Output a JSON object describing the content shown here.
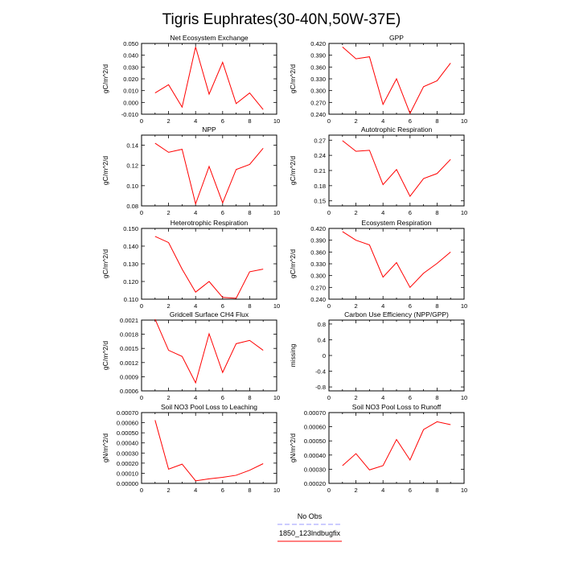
{
  "title": "Tigris Euphrates(30-40N,50W-37E)",
  "legend": {
    "obs_label": "No Obs",
    "model_label": "1850_123lndbugfix",
    "obs_color": "#9999ff",
    "model_color": "#ff0000",
    "placement": "bottom-center"
  },
  "chart_data": [
    {
      "type": "line",
      "title": "Net Ecosystem Exchange",
      "ylabel": "gC/m^2/d",
      "xlim": [
        0,
        10
      ],
      "ylim": [
        -0.01,
        0.05
      ],
      "xticks": [
        "0",
        "2",
        "4",
        "6",
        "8",
        "10"
      ],
      "yticks": [
        "-0.010",
        "0.000",
        "0.010",
        "0.020",
        "0.030",
        "0.040",
        "0.050"
      ],
      "x": [
        1,
        2,
        3,
        4,
        5,
        6,
        7,
        8,
        9
      ],
      "series": [
        {
          "color": "#ff0000",
          "values": [
            0.008,
            0.015,
            -0.004,
            0.047,
            0.007,
            0.034,
            -0.001,
            0.008,
            -0.006
          ]
        }
      ]
    },
    {
      "type": "line",
      "title": "GPP",
      "ylabel": "gC/m^2/d",
      "xlim": [
        0,
        10
      ],
      "ylim": [
        0.24,
        0.42
      ],
      "xticks": [
        "0",
        "2",
        "4",
        "6",
        "8",
        "10"
      ],
      "yticks": [
        "0.240",
        "0.270",
        "0.300",
        "0.330",
        "0.360",
        "0.390",
        "0.420"
      ],
      "x": [
        1,
        2,
        3,
        4,
        5,
        6,
        7,
        8,
        9
      ],
      "series": [
        {
          "color": "#ff0000",
          "values": [
            0.411,
            0.381,
            0.386,
            0.265,
            0.33,
            0.242,
            0.31,
            0.325,
            0.37
          ]
        }
      ]
    },
    {
      "type": "line",
      "title": "NPP",
      "ylabel": "gC/m^2/d",
      "xlim": [
        0,
        10
      ],
      "ylim": [
        0.08,
        0.15
      ],
      "xticks": [
        "0",
        "2",
        "4",
        "6",
        "8",
        "10"
      ],
      "yticks": [
        "0.08",
        "0.10",
        "0.12",
        "0.14"
      ],
      "x": [
        1,
        2,
        3,
        4,
        5,
        6,
        7,
        8,
        9
      ],
      "series": [
        {
          "color": "#ff0000",
          "values": [
            0.142,
            0.133,
            0.136,
            0.082,
            0.119,
            0.083,
            0.116,
            0.121,
            0.137
          ]
        }
      ]
    },
    {
      "type": "line",
      "title": "Autotrophic Respiration",
      "ylabel": "gC/m^2/d",
      "xlim": [
        0,
        10
      ],
      "ylim": [
        0.14,
        0.28
      ],
      "xticks": [
        "0",
        "2",
        "4",
        "6",
        "8",
        "10"
      ],
      "yticks": [
        "0.15",
        "0.18",
        "0.21",
        "0.24",
        "0.27"
      ],
      "x": [
        1,
        2,
        3,
        4,
        5,
        6,
        7,
        8,
        9
      ],
      "series": [
        {
          "color": "#ff0000",
          "values": [
            0.269,
            0.248,
            0.25,
            0.182,
            0.212,
            0.159,
            0.194,
            0.204,
            0.232
          ]
        }
      ]
    },
    {
      "type": "line",
      "title": "Heterotrophic Respiration",
      "ylabel": "gC/m^2/d",
      "xlim": [
        0,
        10
      ],
      "ylim": [
        0.11,
        0.15
      ],
      "xticks": [
        "0",
        "2",
        "4",
        "6",
        "8",
        "10"
      ],
      "yticks": [
        "0.110",
        "0.120",
        "0.130",
        "0.140",
        "0.150"
      ],
      "x": [
        1,
        2,
        3,
        4,
        5,
        6,
        7,
        8,
        9
      ],
      "series": [
        {
          "color": "#ff0000",
          "values": [
            0.1455,
            0.142,
            0.127,
            0.114,
            0.12,
            0.111,
            0.1105,
            0.1255,
            0.127
          ]
        }
      ]
    },
    {
      "type": "line",
      "title": "Ecosystem Respiration",
      "ylabel": "gC/m^2/d",
      "xlim": [
        0,
        10
      ],
      "ylim": [
        0.24,
        0.42
      ],
      "xticks": [
        "0",
        "2",
        "4",
        "6",
        "8",
        "10"
      ],
      "yticks": [
        "0.240",
        "0.270",
        "0.300",
        "0.330",
        "0.360",
        "0.390",
        "0.420"
      ],
      "x": [
        1,
        2,
        3,
        4,
        5,
        6,
        7,
        8,
        9
      ],
      "series": [
        {
          "color": "#ff0000",
          "values": [
            0.412,
            0.39,
            0.378,
            0.296,
            0.333,
            0.27,
            0.306,
            0.331,
            0.36
          ]
        }
      ]
    },
    {
      "type": "line",
      "title": "Gridcell Surface CH4 Flux",
      "ylabel": "gC/m^2/d",
      "xlim": [
        0,
        10
      ],
      "ylim": [
        0.0006,
        0.0021
      ],
      "xticks": [
        "0",
        "2",
        "4",
        "6",
        "8",
        "10"
      ],
      "yticks": [
        "0.0006",
        "0.0009",
        "0.0012",
        "0.0015",
        "0.0018",
        "0.0021"
      ],
      "x": [
        1,
        2,
        3,
        4,
        5,
        6,
        7,
        8,
        9
      ],
      "series": [
        {
          "color": "#ff0000",
          "values": [
            0.00212,
            0.00146,
            0.00133,
            0.00077,
            0.00181,
            0.00099,
            0.0016,
            0.00167,
            0.00146
          ]
        }
      ]
    },
    {
      "type": "line",
      "title": "Carbon Use Efficiency (NPP/GPP)",
      "ylabel": "missing",
      "xlim": [
        0,
        10
      ],
      "ylim": [
        -0.9,
        0.9
      ],
      "xticks": [
        "0",
        "2",
        "4",
        "6",
        "8",
        "10"
      ],
      "yticks": [
        "-0.8",
        "-0.4",
        "0",
        "0.4",
        "0.8"
      ],
      "x": [],
      "series": []
    },
    {
      "type": "line",
      "title": "Soil NO3 Pool Loss to Leaching",
      "ylabel": "gN/m^2/d",
      "xlim": [
        0,
        10
      ],
      "ylim": [
        0.0,
        0.0007
      ],
      "xticks": [
        "0",
        "2",
        "4",
        "6",
        "8",
        "10"
      ],
      "yticks": [
        "0.00000",
        "0.00010",
        "0.00020",
        "0.00030",
        "0.00040",
        "0.00050",
        "0.00060",
        "0.00070"
      ],
      "x": [
        1,
        2,
        3,
        4,
        5,
        6,
        7,
        8,
        9
      ],
      "series": [
        {
          "color": "#ff0000",
          "values": [
            0.000625,
            0.00014,
            0.00019,
            2.5e-05,
            4.5e-05,
            6e-05,
            8e-05,
            0.00013,
            0.000195
          ]
        }
      ]
    },
    {
      "type": "line",
      "title": "Soil NO3 Pool Loss to Runoff",
      "ylabel": "gN/m^2/d",
      "xlim": [
        0,
        10
      ],
      "ylim": [
        0.0002,
        0.0007
      ],
      "xticks": [
        "0",
        "2",
        "4",
        "6",
        "8",
        "10"
      ],
      "yticks": [
        "0.00020",
        "0.00030",
        "0.00040",
        "0.00050",
        "0.00060",
        "0.00070"
      ],
      "x": [
        1,
        2,
        3,
        4,
        5,
        6,
        7,
        8,
        9
      ],
      "series": [
        {
          "color": "#ff0000",
          "values": [
            0.000325,
            0.00041,
            0.000295,
            0.000325,
            0.00051,
            0.000365,
            0.00058,
            0.000635,
            0.000615
          ]
        }
      ]
    }
  ]
}
